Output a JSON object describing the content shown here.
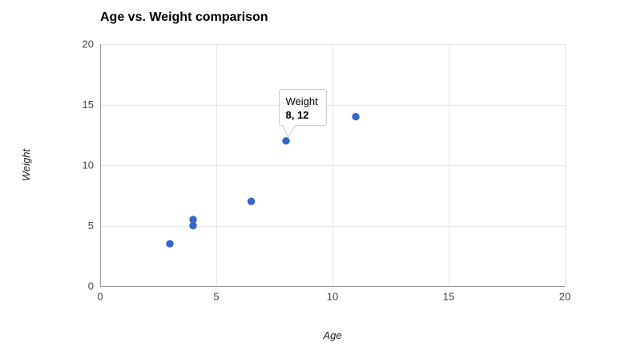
{
  "chart_data": {
    "type": "scatter",
    "title": "Age vs. Weight comparison",
    "xlabel": "Age",
    "ylabel": "Weight",
    "xlim": [
      0,
      20
    ],
    "ylim": [
      0,
      20
    ],
    "x_ticks": [
      0,
      5,
      10,
      15,
      20
    ],
    "y_ticks": [
      0,
      5,
      10,
      15,
      20
    ],
    "grid": true,
    "legend_position": "none",
    "series": [
      {
        "name": "Weight",
        "points": [
          [
            3,
            3.5
          ],
          [
            4,
            5.5
          ],
          [
            4,
            5
          ],
          [
            6.5,
            7
          ],
          [
            8,
            12
          ],
          [
            11,
            14
          ]
        ]
      }
    ],
    "colors": {
      "point": "#3366cc",
      "gridline": "#e6e6e6",
      "baseline": "#999999",
      "tick_label": "#444444",
      "axis_title": "#222222",
      "title": "#000000",
      "tooltip_border": "#cccccc",
      "tooltip_bg": "#ffffff"
    }
  },
  "tooltip": {
    "label": "Weight",
    "value": "8, 12",
    "anchor_point": [
      8,
      12
    ]
  }
}
